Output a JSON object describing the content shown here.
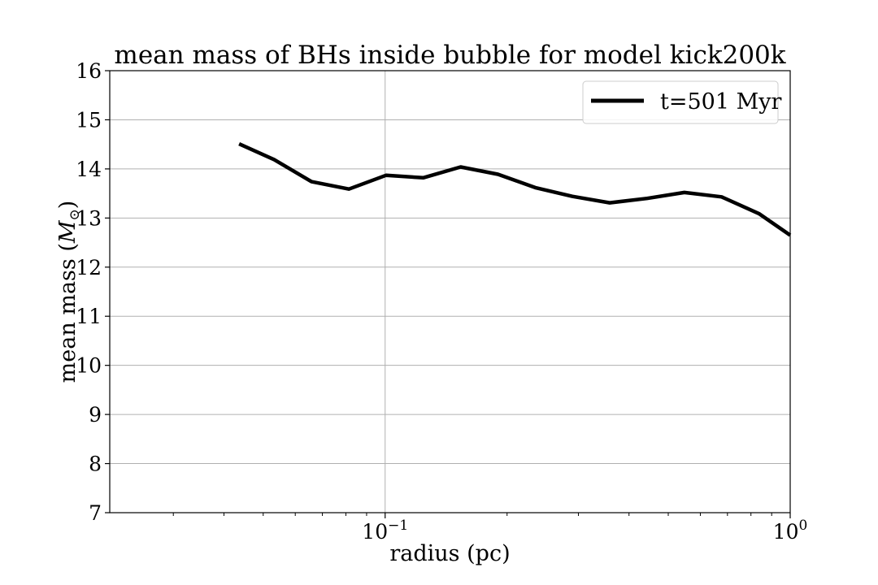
{
  "chart_data": {
    "type": "line",
    "title": "mean mass of BHs inside bubble for model kick200k",
    "xlabel": "radius (pc)",
    "ylabel_prefix": "mean mass (",
    "ylabel_symbol": "M",
    "ylabel_subscript": "⊙",
    "ylabel_suffix": ")",
    "xscale": "log",
    "xlim": [
      0.0209,
      1.0
    ],
    "ylim": [
      7,
      16
    ],
    "x_ticks": [
      {
        "value": 0.1,
        "base": "10",
        "exp": "−1"
      },
      {
        "value": 1.0,
        "base": "10",
        "exp": "0"
      }
    ],
    "y_ticks": [
      7,
      8,
      9,
      10,
      11,
      12,
      13,
      14,
      15,
      16
    ],
    "grid": true,
    "legend_position": "top-right",
    "series": [
      {
        "name": "t=501 Myr",
        "color": "#000000",
        "x": [
          0.0436,
          0.0532,
          0.0658,
          0.0814,
          0.1006,
          0.1242,
          0.1536,
          0.1899,
          0.2347,
          0.29,
          0.3585,
          0.4431,
          0.5478,
          0.6771,
          0.8371,
          1.0
        ],
        "y": [
          14.51,
          14.19,
          13.74,
          13.59,
          13.87,
          13.82,
          14.04,
          13.89,
          13.62,
          13.44,
          13.31,
          13.4,
          13.52,
          13.43,
          13.09,
          12.65
        ]
      }
    ]
  }
}
